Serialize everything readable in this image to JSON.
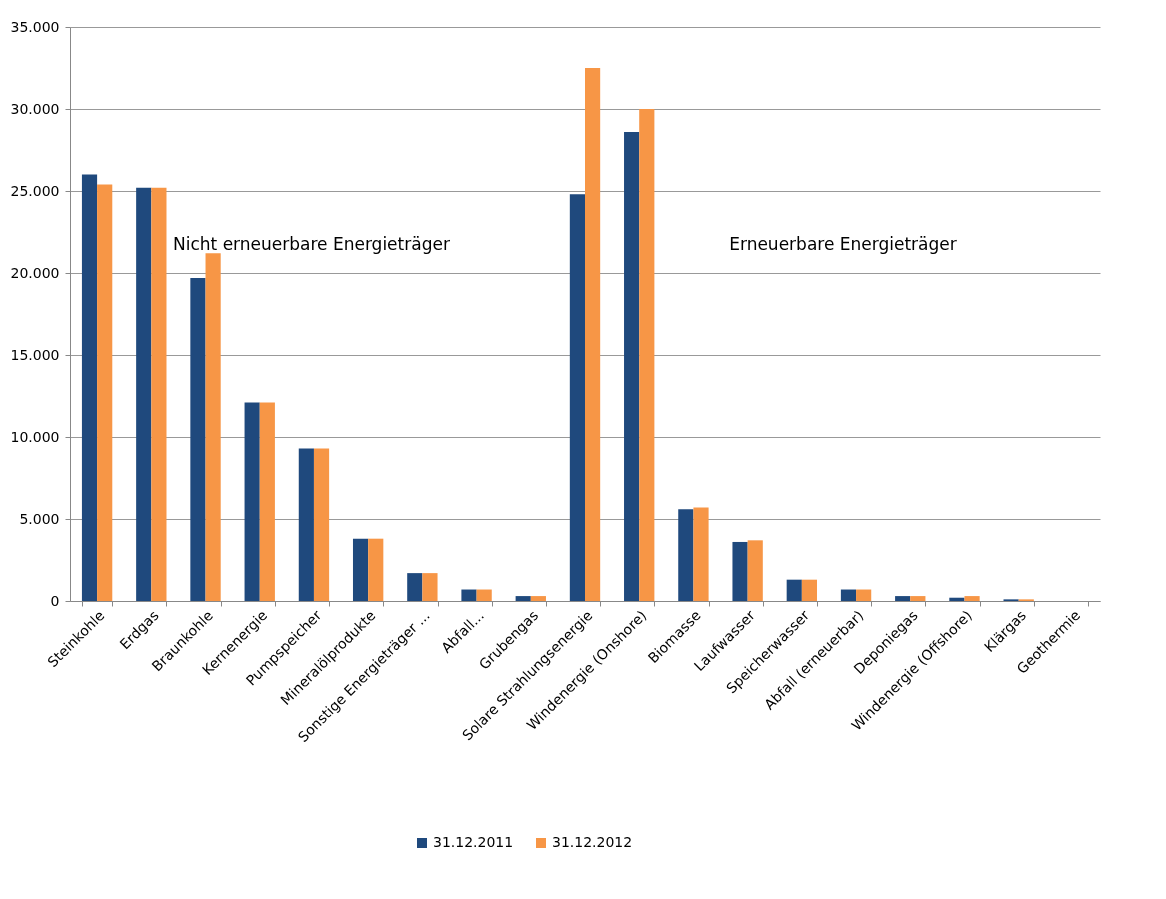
{
  "chart_data": {
    "type": "bar",
    "categories": [
      "Steinkohle",
      "Erdgas",
      "Braunkohle",
      "Kernenergie",
      "Pumpspeicher",
      "Mineralölprodukte",
      "Sonstige Energieträger ...",
      "Abfall...",
      "Grubengas",
      "Solare Strahlungsenergie",
      "Windenergie (Onshore)",
      "Biomasse",
      "Laufwasser",
      "Speicherwasser",
      "Abfall (erneuerbar)",
      "Deponiegas",
      "Windenergie (Offshore)",
      "Klärgas",
      "Geothermie"
    ],
    "series": [
      {
        "name": "31.12.2011",
        "color": "#1f497d",
        "values": [
          26000,
          25200,
          19700,
          12100,
          9300,
          3800,
          1700,
          700,
          300,
          24800,
          28600,
          5600,
          3600,
          1300,
          700,
          300,
          200,
          100,
          0
        ]
      },
      {
        "name": "31.12.2012",
        "color": "#f79646",
        "values": [
          25400,
          25200,
          21200,
          12100,
          9300,
          3800,
          1700,
          700,
          300,
          32500,
          30000,
          5700,
          3700,
          1300,
          700,
          300,
          300,
          100,
          0
        ]
      }
    ],
    "ylim": [
      0,
      35000
    ],
    "yticks": [
      0,
      {
        "value": 5000,
        "label": "5.000"
      },
      {
        "value": 10000,
        "label": "10.000"
      },
      {
        "value": 15000,
        "label": "15.000"
      },
      {
        "value": 20000,
        "label": "20.000"
      },
      {
        "value": 25000,
        "label": "25.000"
      },
      {
        "value": 30000,
        "label": "30.000"
      },
      {
        "value": 35000,
        "label": "35.000"
      }
    ],
    "grid": "y",
    "legend": "bottom",
    "annotations": [
      "Nicht erneuerbare Energieträger",
      "Erneuerbare Energieträger"
    ]
  }
}
